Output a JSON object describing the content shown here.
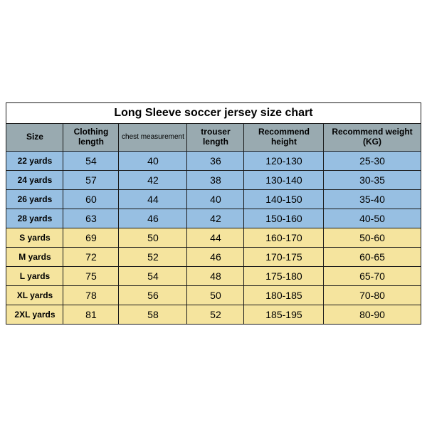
{
  "title": "Long Sleeve soccer jersey size chart",
  "colors": {
    "header_bg": "#99aab0",
    "group1_bg": "#97bfe2",
    "group2_bg": "#f5e49e",
    "border": "#1a1a1a",
    "text": "#000000"
  },
  "columns": [
    {
      "label": "Size"
    },
    {
      "label": "Clothing length"
    },
    {
      "label": "chest measurement",
      "small": true
    },
    {
      "label": "trouser length"
    },
    {
      "label": "Recommend height"
    },
    {
      "label": "Recommend weight (KG)"
    }
  ],
  "groups": [
    {
      "bg": "#97bfe2",
      "rows": [
        {
          "size": "22 yards",
          "clothing_length": "54",
          "chest": "40",
          "trouser": "36",
          "height": "120-130",
          "weight": "25-30"
        },
        {
          "size": "24 yards",
          "clothing_length": "57",
          "chest": "42",
          "trouser": "38",
          "height": "130-140",
          "weight": "30-35"
        },
        {
          "size": "26 yards",
          "clothing_length": "60",
          "chest": "44",
          "trouser": "40",
          "height": "140-150",
          "weight": "35-40"
        },
        {
          "size": "28 yards",
          "clothing_length": "63",
          "chest": "46",
          "trouser": "42",
          "height": "150-160",
          "weight": "40-50"
        }
      ]
    },
    {
      "bg": "#f5e49e",
      "rows": [
        {
          "size": "S yards",
          "clothing_length": "69",
          "chest": "50",
          "trouser": "44",
          "height": "160-170",
          "weight": "50-60"
        },
        {
          "size": "M yards",
          "clothing_length": "72",
          "chest": "52",
          "trouser": "46",
          "height": "170-175",
          "weight": "60-65"
        },
        {
          "size": "L yards",
          "clothing_length": "75",
          "chest": "54",
          "trouser": "48",
          "height": "175-180",
          "weight": "65-70"
        },
        {
          "size": "XL yards",
          "clothing_length": "78",
          "chest": "56",
          "trouser": "50",
          "height": "180-185",
          "weight": "70-80"
        },
        {
          "size": "2XL yards",
          "clothing_length": "81",
          "chest": "58",
          "trouser": "52",
          "height": "185-195",
          "weight": "80-90"
        }
      ]
    }
  ]
}
